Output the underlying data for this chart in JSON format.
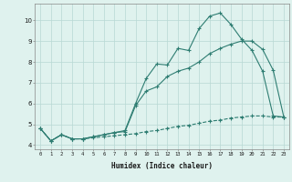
{
  "xlabel": "Humidex (Indice chaleur)",
  "x": [
    0,
    1,
    2,
    3,
    4,
    5,
    6,
    7,
    8,
    9,
    10,
    11,
    12,
    13,
    14,
    15,
    16,
    17,
    18,
    19,
    20,
    21,
    22,
    23
  ],
  "line1": [
    4.8,
    4.2,
    4.5,
    4.3,
    4.3,
    4.4,
    4.5,
    4.6,
    4.7,
    6.0,
    7.2,
    7.9,
    7.85,
    8.65,
    8.55,
    9.6,
    10.2,
    10.35,
    9.8,
    9.1,
    8.55,
    7.55,
    5.4,
    5.35
  ],
  "line2": [
    4.8,
    4.2,
    4.5,
    4.3,
    4.3,
    4.4,
    4.5,
    4.6,
    4.65,
    5.9,
    6.6,
    6.8,
    7.3,
    7.55,
    7.7,
    8.0,
    8.4,
    8.65,
    8.85,
    9.0,
    9.0,
    8.6,
    7.6,
    5.35
  ],
  "line3": [
    4.8,
    4.2,
    4.5,
    4.3,
    4.3,
    4.35,
    4.4,
    4.45,
    4.5,
    4.55,
    4.65,
    4.7,
    4.8,
    4.9,
    4.95,
    5.05,
    5.15,
    5.2,
    5.3,
    5.35,
    5.4,
    5.4,
    5.35,
    5.35
  ],
  "color": "#2e7d72",
  "bg_color": "#dff2ee",
  "grid_color": "#b8d8d3",
  "ylim": [
    3.8,
    10.8
  ],
  "xlim": [
    -0.5,
    23.5
  ]
}
